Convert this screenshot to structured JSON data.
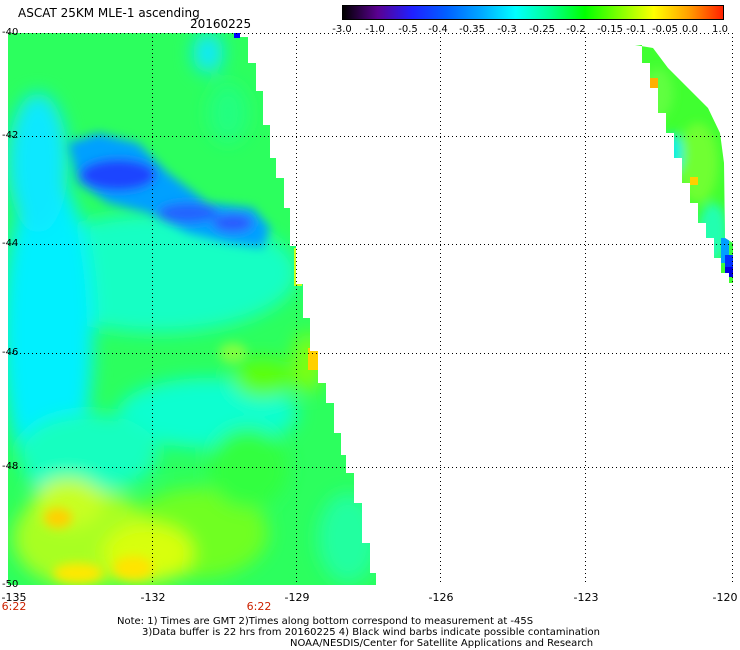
{
  "header": {
    "title": "ASCAT 25KM MLE-1 ascending",
    "date": "20160225"
  },
  "colorbar": {
    "labels": [
      "-3.0",
      "-1.0",
      "-0.5",
      "-0.4",
      "-0.35",
      "-0.3",
      "-0.25",
      "-0.2",
      "-0.15",
      "-0.1",
      "-0.05",
      "0.0",
      "1.0"
    ],
    "colors": [
      "#000000",
      "#5a0090",
      "#2020ff",
      "#0060ff",
      "#00a8ff",
      "#00ffff",
      "#00ff90",
      "#00ff00",
      "#80ff00",
      "#ffff00",
      "#ffa000",
      "#ff2000"
    ]
  },
  "map": {
    "lat_labels": [
      "-40",
      "-42",
      "-44",
      "-46",
      "-48",
      "-50"
    ],
    "lon_labels": [
      "-135",
      "-132",
      "-129",
      "-126",
      "-123",
      "-120"
    ],
    "time_labels": [
      "6:22",
      "6:22"
    ]
  },
  "notes": {
    "line1": "Note: 1) Times are GMT 2)Times along bottom correspond to measurement at -45S",
    "line2": "3)Data buffer is 22 hrs from 20160225 4) Black wind barbs indicate possible contamination",
    "line3": "NOAA/NESDIS/Center for Satellite Applications and Research"
  }
}
